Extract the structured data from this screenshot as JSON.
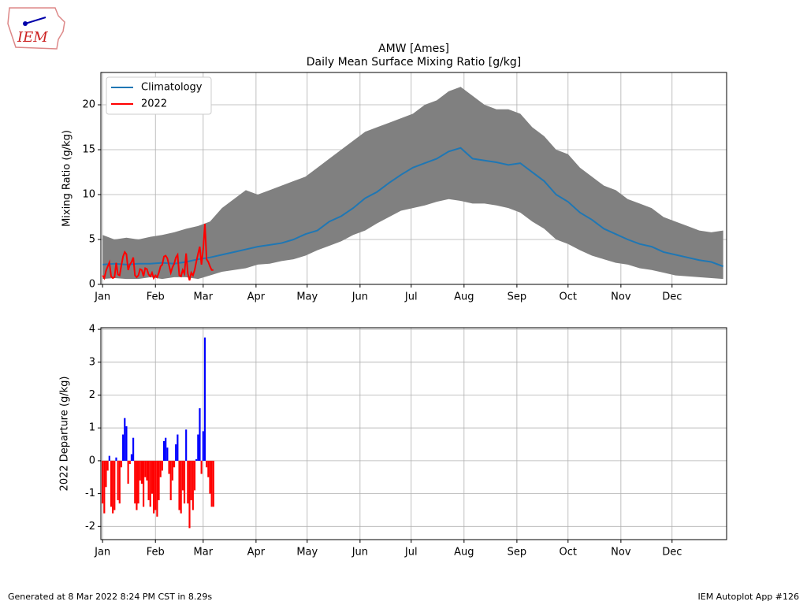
{
  "logo": "IEM",
  "footer_left": "Generated at 8 Mar 2022 8:24 PM CST in 8.29s",
  "footer_right": "IEM Autoplot App #126",
  "chart_data": [
    {
      "type": "line",
      "title": [
        "AMW [Ames]",
        "Daily Mean Surface Mixing Ratio [g/kg]"
      ],
      "ylabel": "Mixing Ratio (g/kg)",
      "xlim": [
        0,
        367
      ],
      "ylim": [
        0,
        23.6
      ],
      "xticks": [
        {
          "value": 1,
          "label": "Jan"
        },
        {
          "value": 32,
          "label": "Feb"
        },
        {
          "value": 60,
          "label": "Mar"
        },
        {
          "value": 91,
          "label": "Apr"
        },
        {
          "value": 121,
          "label": "May"
        },
        {
          "value": 152,
          "label": "Jun"
        },
        {
          "value": 182,
          "label": "Jul"
        },
        {
          "value": 213,
          "label": "Aug"
        },
        {
          "value": 244,
          "label": "Sep"
        },
        {
          "value": 274,
          "label": "Oct"
        },
        {
          "value": 305,
          "label": "Nov"
        },
        {
          "value": 335,
          "label": "Dec"
        }
      ],
      "yticks": [
        0,
        5,
        10,
        15,
        20
      ],
      "grid": true,
      "legend": "upper left",
      "band": {
        "color": "#808080",
        "x": [
          1,
          8,
          15,
          22,
          29,
          36,
          43,
          50,
          57,
          64,
          71,
          78,
          85,
          92,
          99,
          106,
          113,
          120,
          127,
          134,
          141,
          148,
          155,
          162,
          169,
          176,
          183,
          190,
          197,
          204,
          211,
          218,
          225,
          232,
          239,
          246,
          253,
          260,
          267,
          274,
          281,
          288,
          295,
          302,
          309,
          316,
          323,
          330,
          337,
          344,
          351,
          358,
          365
        ],
        "low": [
          0.6,
          0.7,
          0.6,
          0.6,
          0.8,
          0.6,
          0.8,
          0.8,
          0.6,
          1.0,
          1.4,
          1.6,
          1.8,
          2.2,
          2.3,
          2.6,
          2.8,
          3.2,
          3.8,
          4.3,
          4.8,
          5.5,
          6.0,
          6.8,
          7.5,
          8.2,
          8.5,
          8.8,
          9.2,
          9.5,
          9.3,
          9.0,
          9.0,
          8.8,
          8.5,
          8.0,
          7.0,
          6.2,
          5.0,
          4.5,
          3.8,
          3.2,
          2.8,
          2.4,
          2.2,
          1.8,
          1.6,
          1.3,
          1.0,
          0.9,
          0.8,
          0.7,
          0.6
        ],
        "high": [
          5.5,
          5.0,
          5.2,
          5.0,
          5.3,
          5.5,
          5.8,
          6.2,
          6.5,
          7.0,
          8.5,
          9.5,
          10.5,
          10.0,
          10.5,
          11.0,
          11.5,
          12.0,
          13.0,
          14.0,
          15.0,
          16.0,
          17.0,
          17.5,
          18.0,
          18.5,
          19.0,
          20.0,
          20.5,
          21.5,
          22.0,
          21.0,
          20.0,
          19.5,
          19.5,
          19.0,
          17.5,
          16.5,
          15.0,
          14.5,
          13.0,
          12.0,
          11.0,
          10.5,
          9.5,
          9.0,
          8.5,
          7.5,
          7.0,
          6.5,
          6.0,
          5.8,
          6.0
        ]
      },
      "series": [
        {
          "name": "Climatology",
          "color": "#1f77b4",
          "x": [
            1,
            8,
            15,
            22,
            29,
            36,
            43,
            50,
            57,
            64,
            71,
            78,
            85,
            92,
            99,
            106,
            113,
            120,
            127,
            134,
            141,
            148,
            155,
            162,
            169,
            176,
            183,
            190,
            197,
            204,
            211,
            218,
            225,
            232,
            239,
            246,
            253,
            260,
            267,
            274,
            281,
            288,
            295,
            302,
            309,
            316,
            323,
            330,
            337,
            344,
            351,
            358,
            365
          ],
          "values": [
            2.2,
            2.3,
            2.2,
            2.3,
            2.3,
            2.4,
            2.3,
            2.5,
            2.8,
            3.0,
            3.3,
            3.6,
            3.9,
            4.2,
            4.4,
            4.6,
            5.0,
            5.6,
            6.0,
            7.0,
            7.6,
            8.5,
            9.6,
            10.3,
            11.3,
            12.2,
            13.0,
            13.5,
            14.0,
            14.8,
            15.2,
            14.0,
            13.8,
            13.6,
            13.3,
            13.5,
            12.5,
            11.5,
            10.0,
            9.2,
            8.0,
            7.2,
            6.2,
            5.6,
            5.0,
            4.5,
            4.2,
            3.6,
            3.3,
            3.0,
            2.7,
            2.5,
            2.0
          ]
        },
        {
          "name": "2022",
          "color": "#ff0000",
          "x": [
            1,
            2,
            3,
            4,
            5,
            6,
            7,
            8,
            9,
            10,
            11,
            12,
            13,
            14,
            15,
            16,
            17,
            18,
            19,
            20,
            21,
            22,
            23,
            24,
            25,
            26,
            27,
            28,
            29,
            30,
            31,
            32,
            33,
            34,
            35,
            36,
            37,
            38,
            39,
            40,
            41,
            42,
            43,
            44,
            45,
            46,
            47,
            48,
            49,
            50,
            51,
            52,
            53,
            54,
            55,
            56,
            57,
            58,
            59,
            60,
            61,
            62,
            63,
            64,
            65,
            66
          ],
          "values": [
            1.0,
            0.7,
            1.5,
            2.0,
            2.45,
            0.9,
            0.7,
            0.8,
            2.4,
            1.1,
            1.0,
            2.1,
            3.1,
            3.6,
            3.35,
            1.6,
            2.2,
            2.5,
            3.0,
            1.0,
            0.8,
            1.0,
            1.7,
            1.6,
            0.9,
            1.8,
            1.7,
            1.1,
            0.9,
            1.3,
            0.7,
            1.0,
            0.8,
            1.3,
            2.0,
            2.2,
            3.1,
            3.2,
            2.9,
            2.1,
            1.3,
            1.9,
            2.3,
            3.0,
            3.3,
            1.0,
            0.9,
            1.6,
            1.2,
            3.45,
            1.2,
            0.45,
            1.3,
            1.0,
            1.6,
            2.55,
            3.4,
            4.2,
            2.2,
            3.9,
            6.75,
            2.8,
            2.5,
            2.0,
            1.6,
            1.6
          ]
        }
      ]
    },
    {
      "type": "bar",
      "ylabel": "2022 Departure (g/kg)",
      "xlim": [
        0,
        367
      ],
      "ylim": [
        -2.4,
        4.05
      ],
      "xticks": [
        {
          "value": 1,
          "label": "Jan"
        },
        {
          "value": 32,
          "label": "Feb"
        },
        {
          "value": 60,
          "label": "Mar"
        },
        {
          "value": 91,
          "label": "Apr"
        },
        {
          "value": 121,
          "label": "May"
        },
        {
          "value": 152,
          "label": "Jun"
        },
        {
          "value": 182,
          "label": "Jul"
        },
        {
          "value": 213,
          "label": "Aug"
        },
        {
          "value": 244,
          "label": "Sep"
        },
        {
          "value": 274,
          "label": "Oct"
        },
        {
          "value": 305,
          "label": "Nov"
        },
        {
          "value": 335,
          "label": "Dec"
        }
      ],
      "yticks": [
        -2,
        -1,
        0,
        1,
        2,
        3,
        4
      ],
      "grid": true,
      "positive_color": "#0000ff",
      "negative_color": "#ff0000",
      "x": [
        1,
        2,
        3,
        4,
        5,
        6,
        7,
        8,
        9,
        10,
        11,
        12,
        13,
        14,
        15,
        16,
        17,
        18,
        19,
        20,
        21,
        22,
        23,
        24,
        25,
        26,
        27,
        28,
        29,
        30,
        31,
        32,
        33,
        34,
        35,
        36,
        37,
        38,
        39,
        40,
        41,
        42,
        43,
        44,
        45,
        46,
        47,
        48,
        49,
        50,
        51,
        52,
        53,
        54,
        55,
        56,
        57,
        58,
        59,
        60,
        61,
        62,
        63,
        64,
        65,
        66
      ],
      "values": [
        -1.3,
        -1.6,
        -0.8,
        -0.3,
        0.15,
        -1.4,
        -1.6,
        -1.5,
        0.1,
        -1.2,
        -1.3,
        -0.2,
        0.8,
        1.3,
        1.05,
        -0.7,
        -0.1,
        0.2,
        0.7,
        -1.3,
        -1.5,
        -1.3,
        -0.6,
        -0.7,
        -1.4,
        -0.5,
        -0.6,
        -1.2,
        -1.4,
        -1.0,
        -1.6,
        -1.5,
        -1.7,
        -1.2,
        -0.5,
        -0.3,
        0.6,
        0.7,
        0.4,
        -0.4,
        -1.2,
        -0.6,
        -0.2,
        0.5,
        0.8,
        -1.5,
        -1.6,
        -0.9,
        -1.3,
        0.95,
        -1.3,
        -2.05,
        -1.2,
        -1.5,
        -0.9,
        0.05,
        0.8,
        1.6,
        -0.4,
        0.9,
        3.75,
        -0.2,
        -0.5,
        -1.0,
        -1.4,
        -1.4
      ]
    }
  ]
}
